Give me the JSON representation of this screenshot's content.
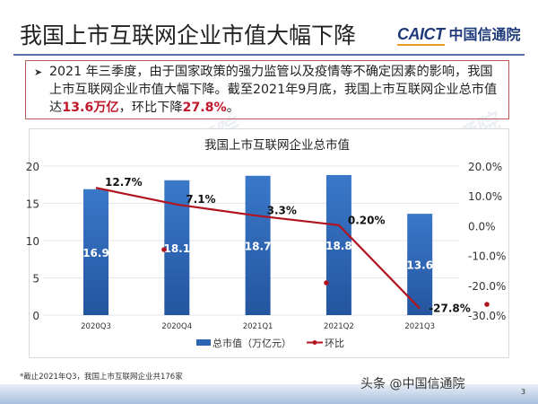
{
  "header": {
    "title": "我国上市互联网企业市值大幅下降",
    "logo_en": "CAICT",
    "logo_cn": "中国信通院"
  },
  "summary": {
    "bullet_icon": "arrow-bullet-icon",
    "text_before": "2021 年三季度，由于国家政策的强力监管以及疫情等不确定因素的影响，我国上市互联网企业市值大幅下降。截至2021年9月底，我国上市互联网企业总市值达",
    "highlight_value": "13.6万亿",
    "text_middle": "，环比下降",
    "highlight_pct": "27.8%",
    "text_after": "。"
  },
  "watermark": "CAICT 中国信通院",
  "chart_data": {
    "type": "bar",
    "title": "我国上市互联网企业总市值",
    "categories": [
      "2020Q3",
      "2020Q4",
      "2021Q1",
      "2021Q2",
      "2021Q3"
    ],
    "series": [
      {
        "name": "总市值（万亿元）",
        "type": "bar",
        "axis": "left",
        "color": "#2e64b4",
        "values": [
          16.9,
          18.1,
          18.7,
          18.8,
          13.6
        ],
        "labels": [
          "16.9",
          "18.1",
          "18.7",
          "18.8",
          "13.6"
        ]
      },
      {
        "name": "环比",
        "type": "line",
        "axis": "right",
        "color": "#b0151f",
        "values": [
          12.7,
          7.1,
          3.3,
          0.2,
          -27.8
        ],
        "labels": [
          "12.7%",
          "7.1%",
          "3.3%",
          "0.20%",
          "-27.8%"
        ]
      }
    ],
    "y_left": {
      "ticks": [
        "20",
        "15",
        "10",
        "5",
        "0"
      ],
      "ylim": [
        0,
        20
      ]
    },
    "y_right": {
      "ticks": [
        "20.0%",
        "10.0%",
        "0.0%",
        "-10.0%",
        "-20.0%",
        "-30.0%"
      ],
      "ylim": [
        -30,
        20
      ]
    },
    "legend": {
      "position": "bottom",
      "items": [
        "总市值（万亿元）",
        "环比"
      ]
    },
    "grid": true
  },
  "footnote": "*截止2021年Q3，我国上市互联网企业共176家",
  "source_tag": "头条 @中国信通院",
  "page_number": "3"
}
